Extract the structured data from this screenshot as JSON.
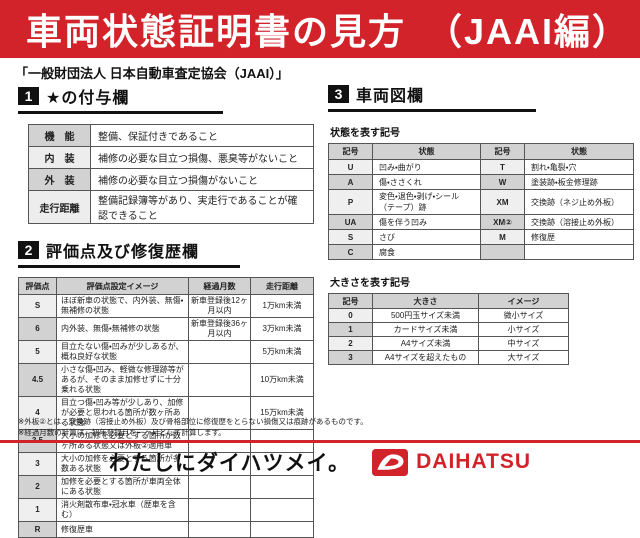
{
  "colors": {
    "accent_red": "#d2232a",
    "table_header_gray": "#d2d2d2",
    "section_black": "#111111"
  },
  "header": {
    "title": "車両状態証明書の見方　（JAAI編）"
  },
  "subtitle": "「一般財団法人 日本自動車査定協会（JAAI）」",
  "section1": {
    "number": "1",
    "title": "★の付与欄",
    "rows": [
      [
        "機　能",
        "整備、保証付きであること"
      ],
      [
        "内　装",
        "補修の必要な目立つ損傷、悪臭等がないこと"
      ],
      [
        "外　装",
        "補修の必要な目立つ損傷がないこと"
      ],
      [
        "走行距離",
        "整備記録簿等があり、実走行であることが確認できること"
      ]
    ]
  },
  "section2": {
    "number": "2",
    "title": "評価点及び修復歴欄",
    "headers": [
      "評価点",
      "評価点設定イメージ",
      "経過月数",
      "走行距離"
    ],
    "rows": [
      [
        "S",
        "ほぼ新車の状態で、内外装、無傷・無補修の状態",
        "新車登録後12ヶ月以内",
        "1万km未満"
      ],
      [
        "6",
        "内外装、無傷・無補修の状態",
        "新車登録後36ヶ月以内",
        "3万km未満"
      ],
      [
        "5",
        "目立たない傷・凹みが少しあるが、概ね良好な状態",
        "",
        "5万km未満"
      ],
      [
        "4.5",
        "小さな傷・凹み、軽微な修理跡等があるが、そのまま加修せずに十分乗れる状態",
        "",
        "10万km未満"
      ],
      [
        "4",
        "目立つ傷・凹み等が少しあり、加修が必要と思われる箇所が数ヶ所ある状態",
        "",
        "15万km未満"
      ],
      [
        "3.5",
        "大小の加修を必要とする箇所が数ヶ所ある状態又は外板②適用車",
        "",
        ""
      ],
      [
        "3",
        "大小の加修を必要とする箇所が多数ある状態",
        "",
        ""
      ],
      [
        "2",
        "加修を必要とする箇所が車両全体にある状態",
        "",
        ""
      ],
      [
        "1",
        "消火剤散布車・冠水車（歴車を含む）",
        "",
        ""
      ],
      [
        "R",
        "修復歴車",
        "",
        ""
      ]
    ]
  },
  "section3": {
    "number": "3",
    "title": "車両図欄",
    "state_label": "状態を表す記号",
    "state_headers": [
      "記号",
      "状態",
      "記号",
      "状態"
    ],
    "state_rows": [
      [
        "U",
        "凹み・曲がり",
        "T",
        "割れ・亀裂・穴"
      ],
      [
        "A",
        "傷・ささくれ",
        "W",
        "塗装跡・板金修理跡"
      ],
      [
        "P",
        "変色・退色・剥げ・シール（テープ）跡",
        "XM",
        "交換跡（ネジ止め外板）"
      ],
      [
        "UA",
        "傷を伴う凹み",
        "XM②",
        "交換跡（溶接止め外板）"
      ],
      [
        "S",
        "さび",
        "M",
        "修復歴"
      ],
      [
        "C",
        "腐食",
        "",
        ""
      ]
    ],
    "size_label": "大きさを表す記号",
    "size_headers": [
      "記号",
      "大きさ",
      "イメージ"
    ],
    "size_rows": [
      [
        "0",
        "500円玉サイズ未満",
        "微小サイズ"
      ],
      [
        "1",
        "カードサイズ未満",
        "小サイズ"
      ],
      [
        "2",
        "A4サイズ未満",
        "中サイズ"
      ],
      [
        "3",
        "A4サイズを超えたもの",
        "大サイズ"
      ]
    ]
  },
  "footnotes": [
    "※外板②とは、交換跡（溶接止め外板）及び骨格部位に修復歴をとらない損傷又は痕跡があるものです。",
    "※経過月数の計算は、初年登録月を一ヶ月として計算します。"
  ],
  "footer": {
    "slogan": "わたしにダイハツメイ。",
    "brand": "DAIHATSU"
  }
}
